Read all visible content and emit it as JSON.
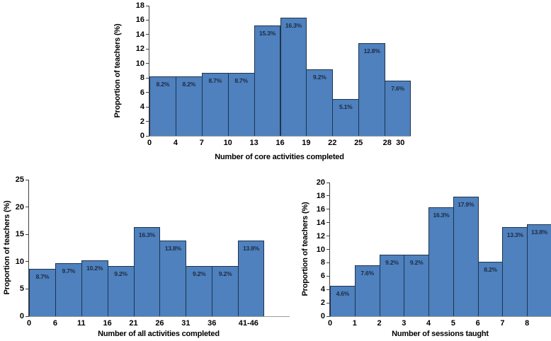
{
  "figure": {
    "background": "#FFFFFF",
    "description_colors": {
      "bar_fill": "#4E81BD",
      "bar_border": "#1F3350",
      "data_label": "#1E2A44",
      "y_axis_line": "#404040",
      "x_axis_line": "#9B9B9B",
      "tick_text": "#000000"
    }
  },
  "chart_data": [
    {
      "id": "core",
      "type": "bar",
      "title": "",
      "xlabel": "Number of core activities completed",
      "ylabel": "Proportion of teachers (%)",
      "ylim": [
        0,
        18
      ],
      "yticks": [
        0,
        2,
        4,
        6,
        8,
        10,
        12,
        14,
        16,
        18
      ],
      "grid": false,
      "legend": null,
      "categories": [
        "0",
        "4",
        "7",
        "10",
        "13",
        "16",
        "19",
        "22",
        "25",
        "28"
      ],
      "values": [
        8.2,
        8.2,
        8.7,
        8.7,
        15.3,
        16.3,
        9.2,
        5.1,
        12.8,
        7.6
      ],
      "labels": [
        "8.2%",
        "8.2%",
        "8.7%",
        "8.7%",
        "15.3%",
        "16.3%",
        "9.2%",
        "5.1%",
        "12.8%",
        "7.6%"
      ],
      "xticks": [
        {
          "label": "0",
          "at": 0
        },
        {
          "label": "4",
          "at": 1
        },
        {
          "label": "7",
          "at": 2
        },
        {
          "label": "10",
          "at": 3
        },
        {
          "label": "13",
          "at": 4
        },
        {
          "label": "16",
          "at": 5
        },
        {
          "label": "19",
          "at": 6
        },
        {
          "label": "22",
          "at": 7
        },
        {
          "label": "25",
          "at": 8
        },
        {
          "label": "28",
          "at": 9.1
        },
        {
          "label": "30",
          "at": 9.6
        }
      ]
    },
    {
      "id": "all",
      "type": "bar",
      "title": "",
      "xlabel": "Number of all activities completed",
      "ylabel": "Proportion of teachers (%)",
      "ylim": [
        0,
        25
      ],
      "yticks": [
        0,
        5,
        10,
        15,
        20,
        25
      ],
      "grid": false,
      "legend": null,
      "categories": [
        "0",
        "6",
        "11",
        "16",
        "21",
        "26",
        "31",
        "36",
        "41-46"
      ],
      "values": [
        8.7,
        9.7,
        10.2,
        9.2,
        16.3,
        13.8,
        9.2,
        9.2,
        13.8
      ],
      "labels": [
        "8.7%",
        "9.7%",
        "10.2%",
        "9.2%",
        "16.3%",
        "13.8%",
        "9.2%",
        "9.2%",
        "13.8%"
      ],
      "xticks": [
        {
          "label": "0",
          "at": 0
        },
        {
          "label": "6",
          "at": 1
        },
        {
          "label": "11",
          "at": 2
        },
        {
          "label": "16",
          "at": 3
        },
        {
          "label": "21",
          "at": 4
        },
        {
          "label": "26",
          "at": 5
        },
        {
          "label": "31",
          "at": 6
        },
        {
          "label": "36",
          "at": 7
        },
        {
          "label": "41-46",
          "at": 8.4
        }
      ]
    },
    {
      "id": "sessions",
      "type": "bar",
      "title": "",
      "xlabel": "Number of sessions taught",
      "ylabel": "Proportion of teachers (%)",
      "ylim": [
        0,
        20
      ],
      "yticks": [
        0,
        2,
        4,
        6,
        8,
        10,
        12,
        14,
        16,
        18,
        20
      ],
      "grid": false,
      "legend": null,
      "categories": [
        "0",
        "1",
        "2",
        "3",
        "4",
        "5",
        "6",
        "7",
        "8"
      ],
      "values": [
        4.6,
        7.6,
        9.2,
        9.2,
        16.3,
        17.9,
        8.2,
        13.3,
        13.8
      ],
      "labels": [
        "4.6%",
        "7.6%",
        "9.2%",
        "9.2%",
        "16.3%",
        "17.9%",
        "8.2%",
        "13.3%",
        "13.8%"
      ],
      "xticks": [
        {
          "label": "0",
          "at": 0
        },
        {
          "label": "1",
          "at": 1
        },
        {
          "label": "2",
          "at": 2
        },
        {
          "label": "3",
          "at": 3
        },
        {
          "label": "4",
          "at": 4
        },
        {
          "label": "5",
          "at": 5
        },
        {
          "label": "6",
          "at": 6
        },
        {
          "label": "7",
          "at": 7
        },
        {
          "label": "8",
          "at": 8
        }
      ]
    }
  ]
}
